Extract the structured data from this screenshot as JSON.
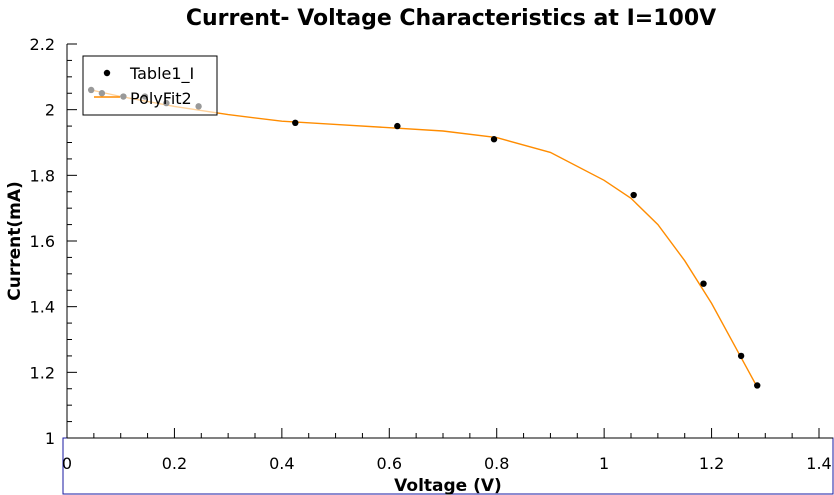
{
  "chart_data": {
    "type": "scatter",
    "title": "Current- Voltage Characteristics at I=100V",
    "xlabel": "Voltage (V)",
    "ylabel": "Current(mA)",
    "xlim": [
      0,
      1.4
    ],
    "ylim": [
      1,
      2.2
    ],
    "xticks": [
      "0",
      "0.2",
      "0.4",
      "0.6",
      "0.8",
      "1",
      "1.2",
      "1.4"
    ],
    "yticks": [
      "1",
      "1.2",
      "1.4",
      "1.6",
      "1.8",
      "2",
      "2.2"
    ],
    "grid": false,
    "legend_position": "top-left",
    "series": [
      {
        "name": "Table1_I",
        "kind": "scatter",
        "color": "#000000",
        "x": [
          0.045,
          0.065,
          0.105,
          0.145,
          0.185,
          0.245,
          0.425,
          0.615,
          0.795,
          1.055,
          1.185,
          1.255,
          1.285
        ],
        "y": [
          2.06,
          2.05,
          2.04,
          2.04,
          2.02,
          2.01,
          1.96,
          1.95,
          1.91,
          1.74,
          1.47,
          1.25,
          1.16
        ]
      },
      {
        "name": "PolyFit2",
        "kind": "line",
        "color": "#ff8c00",
        "x": [
          0.045,
          0.1,
          0.2,
          0.3,
          0.4,
          0.5,
          0.6,
          0.7,
          0.8,
          0.9,
          1.0,
          1.05,
          1.1,
          1.15,
          1.2,
          1.25,
          1.285
        ],
        "y": [
          2.06,
          2.04,
          2.01,
          1.985,
          1.965,
          1.955,
          1.945,
          1.935,
          1.915,
          1.87,
          1.785,
          1.73,
          1.65,
          1.54,
          1.41,
          1.26,
          1.155
        ]
      }
    ]
  }
}
